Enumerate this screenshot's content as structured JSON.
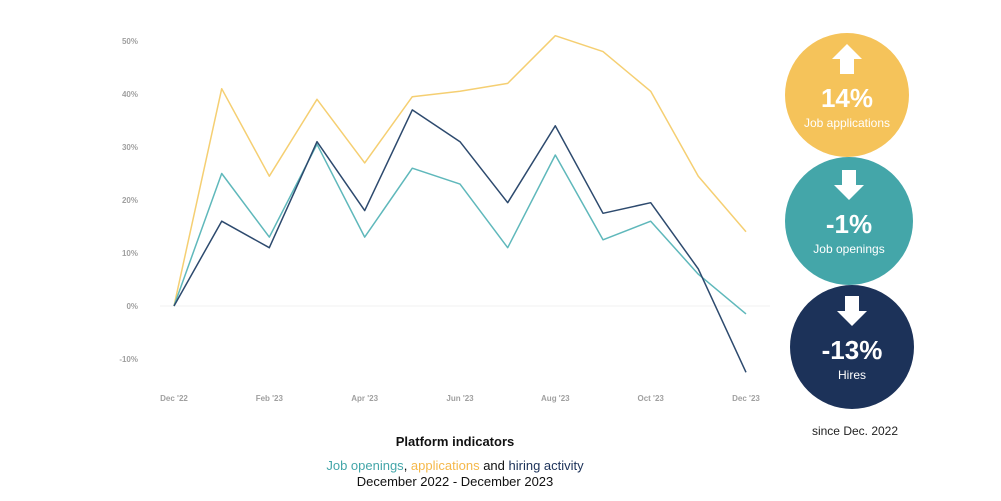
{
  "chart_data": {
    "type": "line",
    "x": [
      "Dec '22",
      "Jan '23",
      "Feb '23",
      "Mar '23",
      "Apr '23",
      "May '23",
      "Jun '23",
      "Jul '23",
      "Aug '23",
      "Sep '23",
      "Oct '23",
      "Nov '23",
      "Dec '23"
    ],
    "x_tick_labels": [
      "Dec '22",
      "Feb '23",
      "Apr '23",
      "Jun '23",
      "Aug '23",
      "Oct '23",
      "Dec '23"
    ],
    "y_tick_labels": [
      "50%",
      "40%",
      "30%",
      "20%",
      "10%",
      "0%",
      "-10%"
    ],
    "ylim": [
      -15,
      52
    ],
    "series": [
      {
        "key": "applications",
        "color": "#f5cf72",
        "values": [
          0,
          41,
          24.5,
          39,
          27,
          39.5,
          40.5,
          42,
          51,
          48,
          40.5,
          24.5,
          14
        ]
      },
      {
        "key": "openings",
        "color": "#5fb8bb",
        "values": [
          0,
          25,
          13,
          30.5,
          13,
          26,
          23,
          11,
          28.5,
          12.5,
          16,
          6,
          -1.5
        ]
      },
      {
        "key": "hires",
        "color": "#2d4a6e",
        "values": [
          0,
          16,
          11,
          31,
          18,
          37,
          31,
          19.5,
          34,
          17.5,
          19.5,
          7,
          -12.5
        ]
      }
    ]
  },
  "badges": [
    {
      "direction": "up",
      "value": "14%",
      "label": "Job applications",
      "color": "#f5c35a"
    },
    {
      "direction": "down",
      "value": "-1%",
      "label": "Job openings",
      "color": "#44a6a9"
    },
    {
      "direction": "down",
      "value": "-13%",
      "label": "Hires",
      "color": "#1c3259"
    }
  ],
  "title": "Platform indicators",
  "subtitle": {
    "part1": "Job openings",
    "sep1": ", ",
    "part2": "applications",
    "sep2": " and ",
    "part3": "hiring activity",
    "line2": "December 2022 - December 2023",
    "color1": "#44a6a9",
    "color2": "#f5b84a",
    "color3": "#1c3259"
  },
  "since_text": "since Dec. 2022"
}
